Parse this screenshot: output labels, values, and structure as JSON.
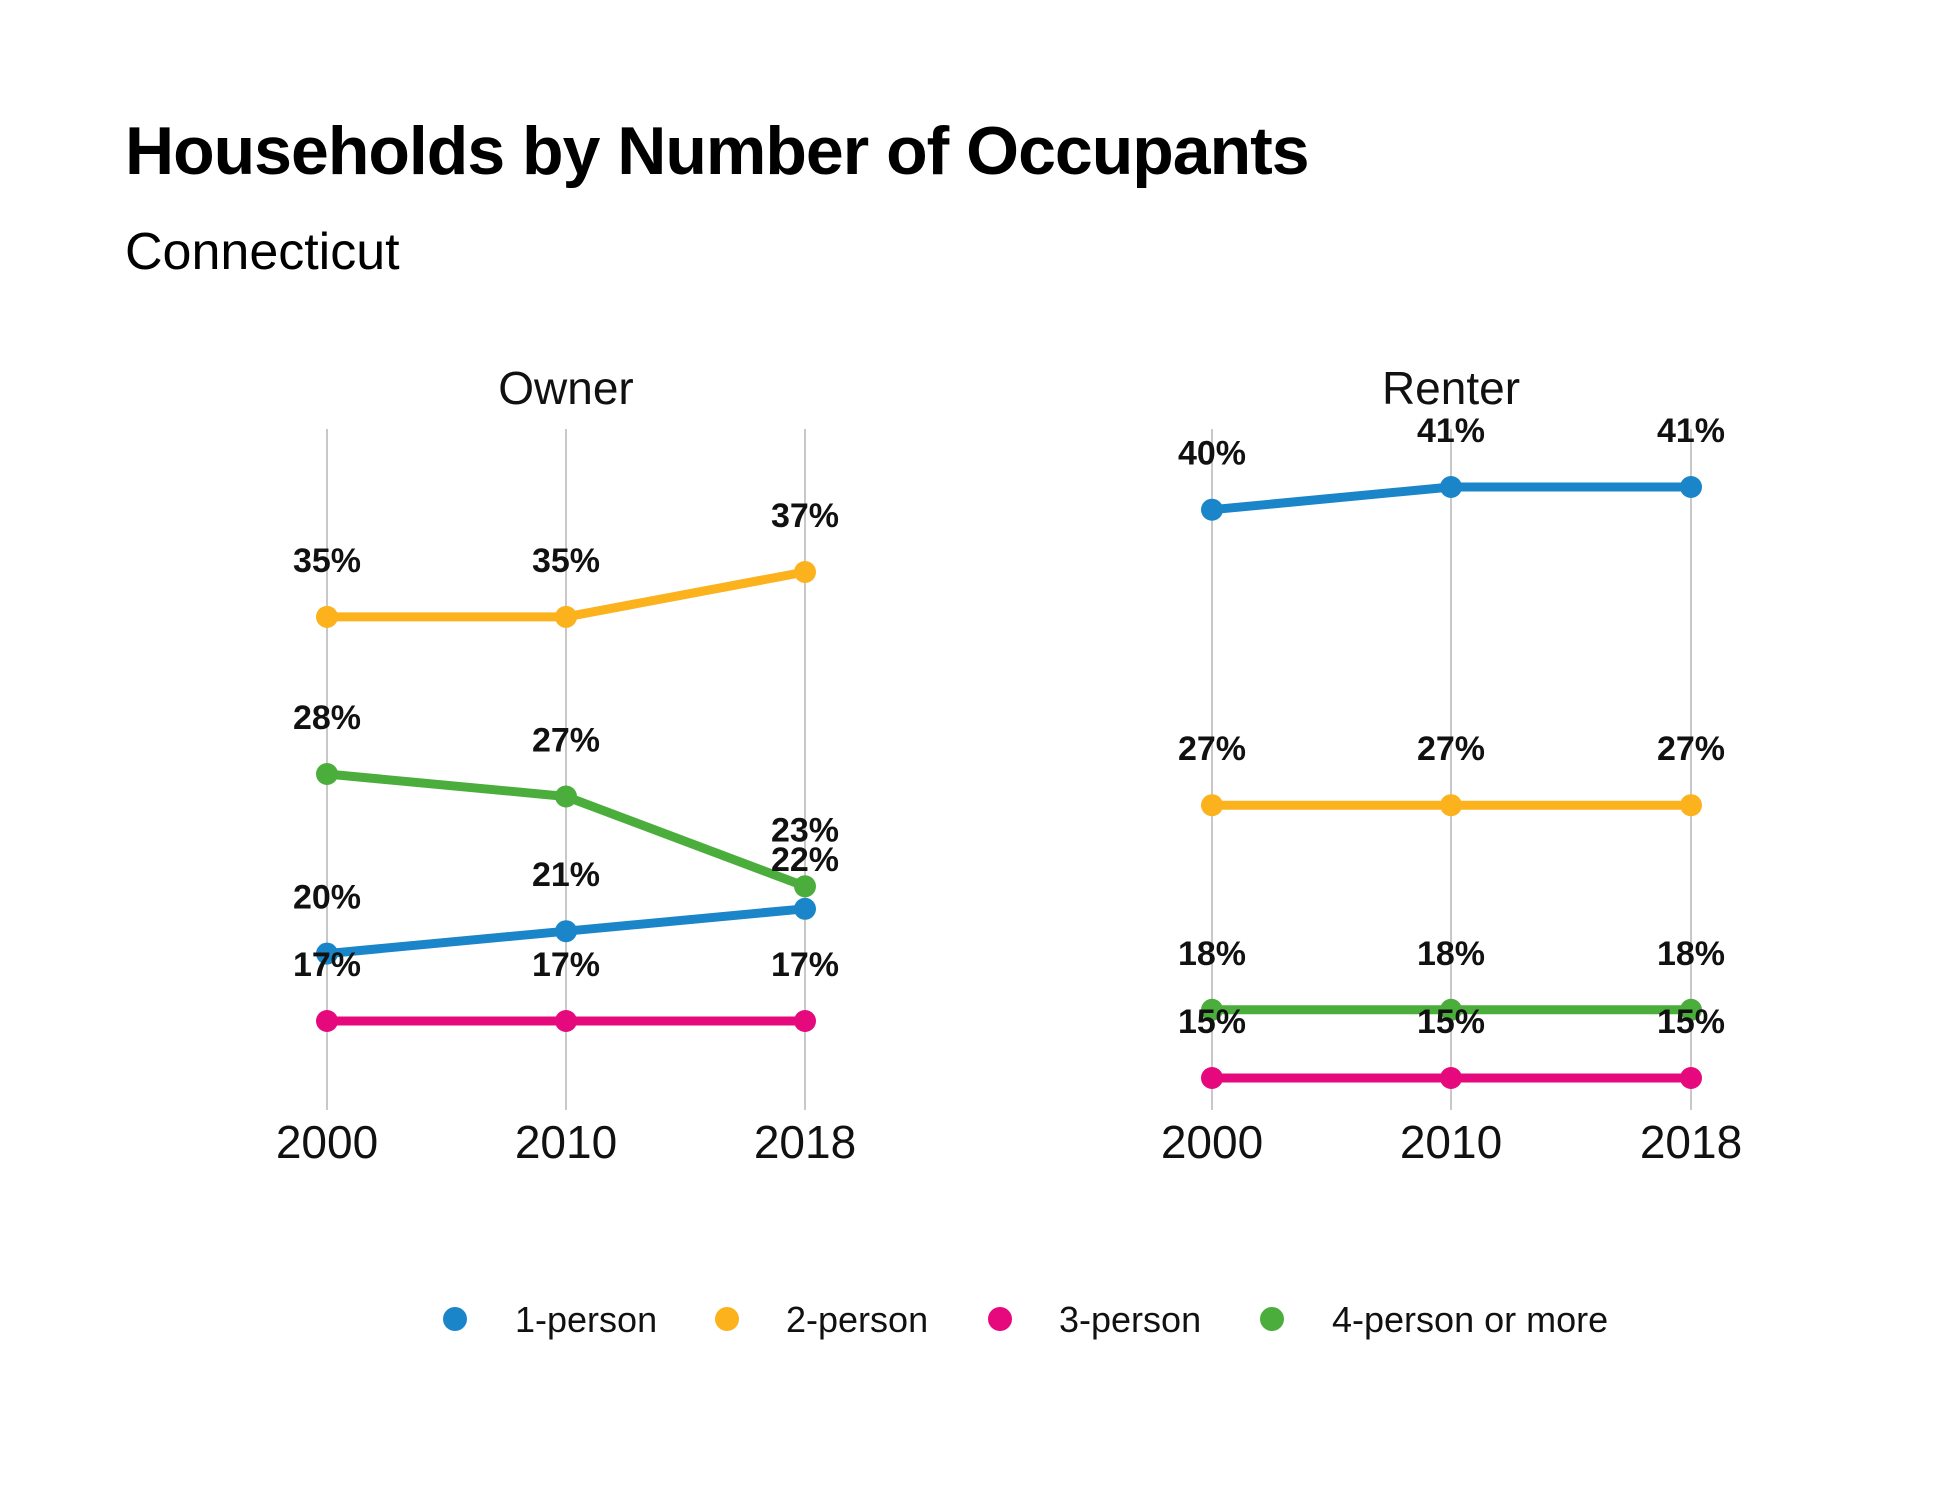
{
  "title": "Households by Number of Occupants",
  "subtitle": "Connecticut",
  "chart_data": {
    "type": "line",
    "x": [
      "2000",
      "2010",
      "2018"
    ],
    "legend_position": "bottom",
    "grid": "vertical lines at each year",
    "panels": [
      {
        "name": "Owner",
        "ylim": [
          0.13,
          0.39
        ],
        "series": [
          {
            "name": "1-person",
            "values": [
              0.2,
              0.21,
              0.22
            ],
            "labels": [
              "20%",
              "21%",
              "22%"
            ]
          },
          {
            "name": "2-person",
            "values": [
              0.35,
              0.35,
              0.37
            ],
            "labels": [
              "35%",
              "35%",
              "37%"
            ]
          },
          {
            "name": "3-person",
            "values": [
              0.17,
              0.17,
              0.17
            ],
            "labels": [
              "17%",
              "17%",
              "17%"
            ]
          },
          {
            "name": "4-person or more",
            "values": [
              0.28,
              0.27,
              0.23
            ],
            "labels": [
              "28%",
              "27%",
              "23%"
            ]
          }
        ]
      },
      {
        "name": "Renter",
        "ylim": [
          0.13,
          0.42
        ],
        "series": [
          {
            "name": "1-person",
            "values": [
              0.4,
              0.41,
              0.41
            ],
            "labels": [
              "40%",
              "41%",
              "41%"
            ]
          },
          {
            "name": "2-person",
            "values": [
              0.27,
              0.27,
              0.27
            ],
            "labels": [
              "27%",
              "27%",
              "27%"
            ]
          },
          {
            "name": "3-person",
            "values": [
              0.15,
              0.15,
              0.15
            ],
            "labels": [
              "15%",
              "15%",
              "15%"
            ]
          },
          {
            "name": "4-person or more",
            "values": [
              0.18,
              0.18,
              0.18
            ],
            "labels": [
              "18%",
              "18%",
              "18%"
            ]
          }
        ]
      }
    ],
    "colors": {
      "1-person": "#1B85C9",
      "2-person": "#FBB21C",
      "3-person": "#E6097E",
      "4-person or more": "#4BAE3C"
    }
  }
}
